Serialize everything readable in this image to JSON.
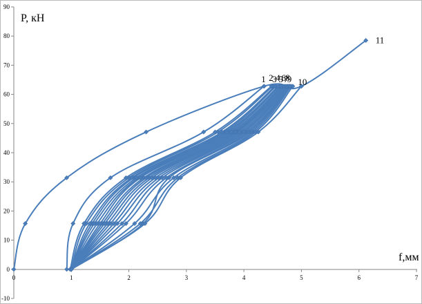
{
  "chart_data": {
    "type": "line",
    "title": "",
    "xlabel": "f,мм",
    "ylabel": "P, кН",
    "xlim": [
      0,
      7
    ],
    "ylim": [
      -10,
      90
    ],
    "x_ticks": [
      "0",
      "1",
      "2",
      "3",
      "4",
      "5",
      "6",
      "7"
    ],
    "y_ticks": [
      "-10",
      "0",
      "10",
      "20",
      "30",
      "40",
      "50",
      "60",
      "70",
      "80",
      "90"
    ],
    "grid": false,
    "legend": "none",
    "line_color": "#4a7ebb",
    "series": [
      {
        "name": "1",
        "points": [
          [
            0.92,
            0
          ],
          [
            1.03,
            15.7
          ],
          [
            1.68,
            31.4
          ],
          [
            3.3,
            47.1
          ],
          [
            4.35,
            62.8
          ]
        ]
      },
      {
        "name": "2",
        "points": [
          [
            0.98,
            0
          ],
          [
            1.22,
            15.7
          ],
          [
            1.95,
            31.4
          ],
          [
            3.5,
            47.1
          ],
          [
            4.48,
            62.8
          ]
        ]
      },
      {
        "name": "3",
        "points": [
          [
            1.0,
            0
          ],
          [
            1.32,
            15.7
          ],
          [
            2.05,
            31.4
          ],
          [
            3.62,
            47.1
          ],
          [
            4.54,
            62.8
          ]
        ]
      },
      {
        "name": "4",
        "points": [
          [
            1.0,
            0
          ],
          [
            1.4,
            15.7
          ],
          [
            2.13,
            31.4
          ],
          [
            3.7,
            47.1
          ],
          [
            4.6,
            62.8
          ]
        ]
      },
      {
        "name": "5",
        "points": [
          [
            1.0,
            0
          ],
          [
            1.5,
            15.7
          ],
          [
            2.2,
            31.4
          ],
          [
            3.78,
            47.1
          ],
          [
            4.65,
            62.8
          ]
        ]
      },
      {
        "name": "6",
        "points": [
          [
            1.0,
            0
          ],
          [
            1.58,
            15.7
          ],
          [
            2.3,
            31.4
          ],
          [
            3.85,
            47.1
          ],
          [
            4.7,
            62.8
          ]
        ]
      },
      {
        "name": "7",
        "points": [
          [
            1.0,
            0
          ],
          [
            1.68,
            15.7
          ],
          [
            2.4,
            31.4
          ],
          [
            3.92,
            47.1
          ],
          [
            4.74,
            62.8
          ]
        ]
      },
      {
        "name": "8",
        "points": [
          [
            1.0,
            0
          ],
          [
            1.8,
            15.7
          ],
          [
            2.52,
            31.4
          ],
          [
            4.0,
            47.1
          ],
          [
            4.77,
            62.8
          ]
        ]
      },
      {
        "name": "9",
        "points": [
          [
            1.0,
            0
          ],
          [
            1.95,
            15.7
          ],
          [
            2.65,
            31.4
          ],
          [
            4.08,
            47.1
          ],
          [
            4.8,
            62.8
          ]
        ]
      },
      {
        "name": "10",
        "points": [
          [
            1.0,
            0
          ],
          [
            2.28,
            15.7
          ],
          [
            2.9,
            31.4
          ],
          [
            4.25,
            47.1
          ],
          [
            5.0,
            62.8
          ]
        ]
      },
      {
        "name": "11",
        "points": [
          [
            0,
            0
          ],
          [
            0.2,
            15.7
          ],
          [
            0.92,
            31.4
          ],
          [
            2.3,
            47.1
          ],
          [
            4.35,
            62.8
          ],
          [
            5.0,
            62.8
          ],
          [
            6.12,
            78.5
          ]
        ]
      }
    ],
    "extra_curves": [
      {
        "points": [
          [
            1.0,
            0
          ],
          [
            1.26,
            15.7
          ],
          [
            2.0,
            31.4
          ],
          [
            3.55,
            47.1
          ],
          [
            4.5,
            62.8
          ]
        ]
      },
      {
        "points": [
          [
            1.0,
            0
          ],
          [
            1.36,
            15.7
          ],
          [
            2.08,
            31.4
          ],
          [
            3.66,
            47.1
          ],
          [
            4.56,
            62.8
          ]
        ]
      },
      {
        "points": [
          [
            1.0,
            0
          ],
          [
            1.45,
            15.7
          ],
          [
            2.17,
            31.4
          ],
          [
            3.74,
            47.1
          ],
          [
            4.62,
            62.8
          ]
        ]
      },
      {
        "points": [
          [
            1.0,
            0
          ],
          [
            1.54,
            15.7
          ],
          [
            2.26,
            31.4
          ],
          [
            3.82,
            47.1
          ],
          [
            4.67,
            62.8
          ]
        ]
      },
      {
        "points": [
          [
            1.0,
            0
          ],
          [
            1.63,
            15.7
          ],
          [
            2.35,
            31.4
          ],
          [
            3.88,
            47.1
          ],
          [
            4.72,
            62.8
          ]
        ]
      },
      {
        "points": [
          [
            1.0,
            0
          ],
          [
            1.74,
            15.7
          ],
          [
            2.46,
            31.4
          ],
          [
            3.96,
            47.1
          ],
          [
            4.76,
            62.8
          ]
        ]
      },
      {
        "points": [
          [
            1.0,
            0
          ],
          [
            1.88,
            15.7
          ],
          [
            2.58,
            31.4
          ],
          [
            4.04,
            47.1
          ],
          [
            4.79,
            62.8
          ]
        ]
      },
      {
        "points": [
          [
            1.0,
            0
          ],
          [
            2.1,
            15.7
          ],
          [
            2.78,
            31.4
          ],
          [
            4.16,
            47.1
          ],
          [
            4.82,
            62.8
          ]
        ]
      },
      {
        "points": [
          [
            1.0,
            0
          ],
          [
            2.2,
            15.7
          ],
          [
            2.85,
            31.4
          ],
          [
            4.2,
            47.1
          ],
          [
            4.85,
            62.8
          ]
        ]
      },
      {
        "points": [
          [
            1.0,
            0
          ],
          [
            2.25,
            15.7
          ],
          [
            2.7,
            31.4
          ],
          [
            4.12,
            47.1
          ],
          [
            4.8,
            62.8
          ]
        ]
      }
    ],
    "curve_labels": [
      {
        "text": "1",
        "series": 0
      },
      {
        "text": "2",
        "series": 1
      },
      {
        "text": "3",
        "series": 2
      },
      {
        "text": "4",
        "series": 3
      },
      {
        "text": "5",
        "series": 4
      },
      {
        "text": "6",
        "series": 5
      },
      {
        "text": "7",
        "series": 6
      },
      {
        "text": "8",
        "series": 7
      },
      {
        "text": "9",
        "series": 8
      },
      {
        "text": "10",
        "series": 9
      },
      {
        "text": "11",
        "series": 10
      }
    ]
  }
}
